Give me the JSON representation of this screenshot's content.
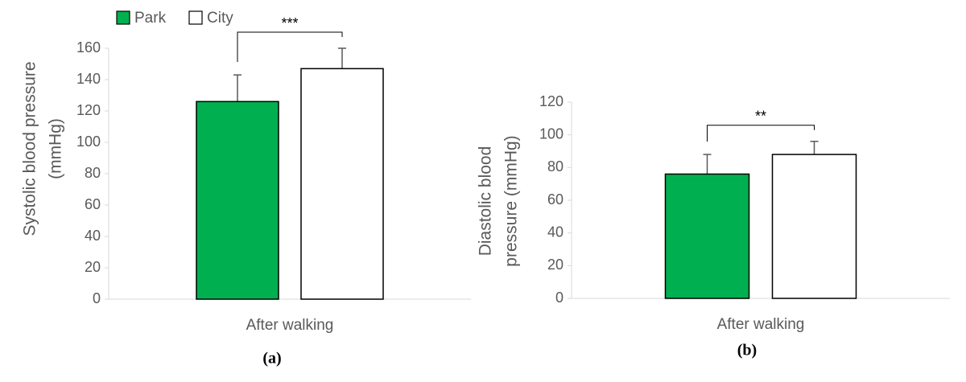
{
  "chart_data": [
    {
      "type": "bar",
      "caption": "(a)",
      "ylabel": [
        "Systolic blood pressure",
        "(mmHg)"
      ],
      "categories": [
        "After walking"
      ],
      "series": [
        {
          "name": "Park",
          "color": "#00b050",
          "values": [
            126
          ],
          "errors": [
            17
          ]
        },
        {
          "name": "City",
          "color": "#ffffff",
          "values": [
            147
          ],
          "errors": [
            13
          ]
        }
      ],
      "ylim": [
        0,
        160
      ],
      "yticks": [
        0,
        20,
        40,
        60,
        80,
        100,
        120,
        140,
        160
      ],
      "significance": "***",
      "legend": "top-left"
    },
    {
      "type": "bar",
      "caption": "(b)",
      "ylabel": [
        "Diastolic blood",
        "pressure (mmHg)"
      ],
      "categories": [
        "After walking"
      ],
      "series": [
        {
          "color": "#00b050",
          "values": [
            76
          ],
          "errors": [
            12
          ]
        },
        {
          "color": "#ffffff",
          "values": [
            88
          ],
          "errors": [
            8
          ]
        }
      ],
      "ylim": [
        0,
        120
      ],
      "yticks": [
        0,
        20,
        40,
        60,
        80,
        100,
        120
      ],
      "significance": "**"
    }
  ]
}
